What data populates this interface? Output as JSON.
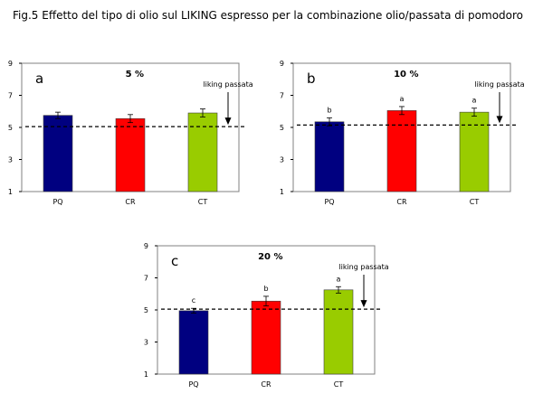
{
  "figure": {
    "title": "Fig.5 Effetto del tipo di olio sul LIKING espresso per la combinazione olio/passata di pomodoro"
  },
  "colors": {
    "PQ": "#000080",
    "CR": "#ff0000",
    "CT": "#99cc00",
    "reference_line": "#000000"
  },
  "chart_data": [
    {
      "type": "bar",
      "panel": "a",
      "subtitle": "5 %",
      "categories": [
        "PQ",
        "CR",
        "CT"
      ],
      "values": [
        5.75,
        5.55,
        5.9
      ],
      "errors": [
        0.2,
        0.25,
        0.25
      ],
      "significance": [
        "",
        "",
        ""
      ],
      "ylim": [
        1,
        9
      ],
      "yticks": [
        "1",
        "3",
        "5",
        "7",
        "9"
      ],
      "reference_value": 5.05,
      "reference_label": "liking passata",
      "grid": false,
      "legend": "none"
    },
    {
      "type": "bar",
      "panel": "b",
      "subtitle": "10 %",
      "categories": [
        "PQ",
        "CR",
        "CT"
      ],
      "values": [
        5.35,
        6.05,
        5.95
      ],
      "errors": [
        0.25,
        0.25,
        0.25
      ],
      "significance": [
        "b",
        "a",
        "a"
      ],
      "ylim": [
        1,
        9
      ],
      "yticks": [
        "1",
        "3",
        "5",
        "7",
        "9"
      ],
      "reference_value": 5.15,
      "reference_label": "liking passata",
      "grid": false,
      "legend": "none"
    },
    {
      "type": "bar",
      "panel": "c",
      "subtitle": "20 %",
      "categories": [
        "PQ",
        "CR",
        "CT"
      ],
      "values": [
        4.95,
        5.55,
        6.25
      ],
      "errors": [
        0.15,
        0.3,
        0.2
      ],
      "significance": [
        "c",
        "b",
        "a"
      ],
      "ylim": [
        1,
        9
      ],
      "yticks": [
        "1",
        "3",
        "5",
        "7",
        "9"
      ],
      "reference_value": 5.05,
      "reference_label": "liking passata",
      "grid": false,
      "legend": "none"
    }
  ]
}
